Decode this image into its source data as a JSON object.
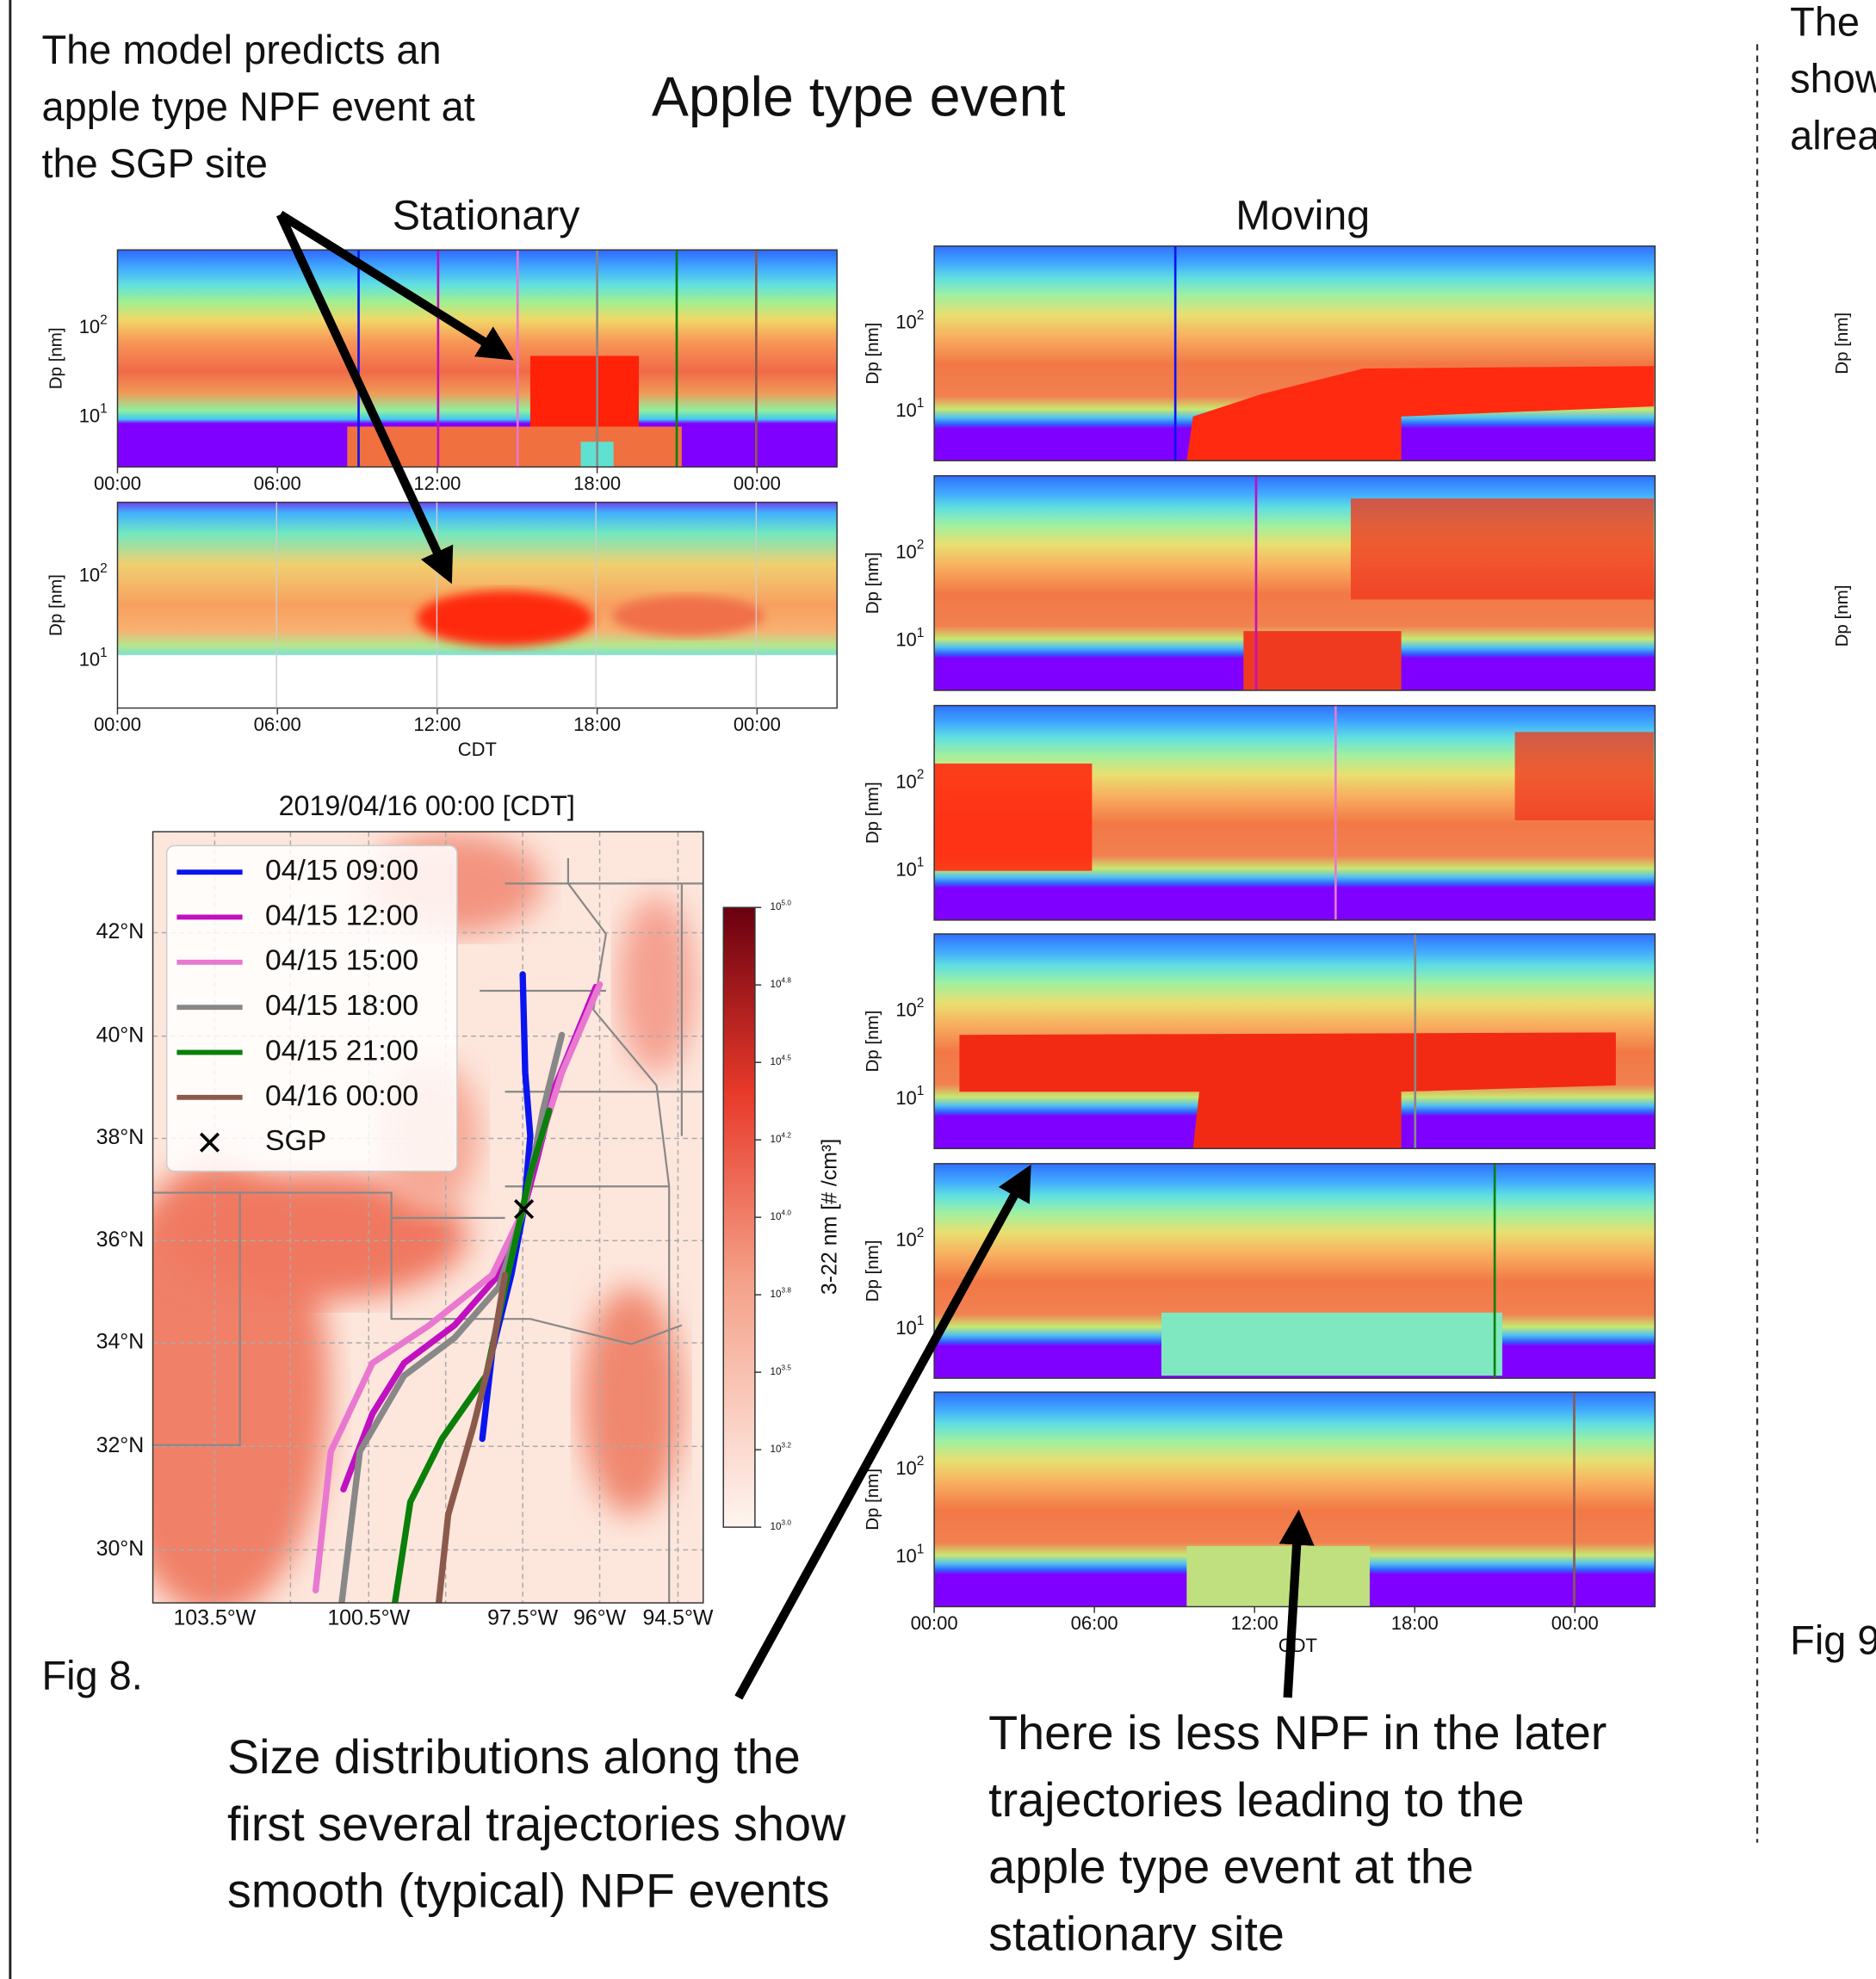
{
  "title": "Apple type event",
  "annotations": {
    "top_left": [
      "The model predicts an",
      "apple type NPF event at",
      "the SGP site"
    ],
    "bottom_left": [
      "Size distributions along the",
      "first several trajectories show",
      "smooth (typical) NPF events"
    ],
    "bottom_right": [
      "There is less NPF in the later",
      "trajectories leading to the",
      "apple type event at the",
      "stationary site"
    ]
  },
  "stationary": {
    "title": "Stationary",
    "ylabel": "Dp [nm]",
    "yticks": [
      {
        "base": "10",
        "exp": "2"
      },
      {
        "base": "10",
        "exp": "1"
      }
    ],
    "xticks": [
      "00:00",
      "06:00",
      "12:00",
      "18:00",
      "00:00"
    ],
    "xlabel": "CDT"
  },
  "moving": {
    "title": "Moving",
    "ylabel": "Dp [nm]",
    "yticks": [
      {
        "base": "10",
        "exp": "2"
      },
      {
        "base": "10",
        "exp": "1"
      }
    ],
    "xticks": [
      "00:00",
      "06:00",
      "12:00",
      "18:00",
      "00:00"
    ],
    "xlabel": "CDT"
  },
  "map": {
    "title": "2019/04/16  00:00 [CDT]",
    "legend": [
      {
        "label": "04/15 09:00",
        "color": "#0a14f0"
      },
      {
        "label": "04/15 12:00",
        "color": "#c010c0"
      },
      {
        "label": "04/15 15:00",
        "color": "#e878d0"
      },
      {
        "label": "04/15 18:00",
        "color": "#888888"
      },
      {
        "label": "04/15 21:00",
        "color": "#0a800a"
      },
      {
        "label": "04/16 00:00",
        "color": "#8c5a4c"
      },
      {
        "label": "SGP"
      }
    ],
    "lat_labels": [
      "42°N",
      "40°N",
      "38°N",
      "36°N",
      "34°N",
      "32°N",
      "30°N"
    ],
    "lon_labels": [
      "103.5°W",
      "100.5°W",
      "97.5°W",
      "96°W",
      "94.5°W"
    ],
    "colorbar": {
      "label": "3-22 nm [# /cm³]",
      "ticks": [
        {
          "base": "10",
          "exp": "5.0"
        },
        {
          "base": "10",
          "exp": "4.8"
        },
        {
          "base": "10",
          "exp": "4.5"
        },
        {
          "base": "10",
          "exp": "4.2"
        },
        {
          "base": "10",
          "exp": "4.0"
        },
        {
          "base": "10",
          "exp": "3.8"
        },
        {
          "base": "10",
          "exp": "3.5"
        },
        {
          "base": "10",
          "exp": "3.2"
        },
        {
          "base": "10",
          "exp": "3.0"
        }
      ]
    }
  },
  "figure_label": "Fig 8.",
  "right_panel": {
    "text": [
      "The",
      "show",
      "alrea"
    ],
    "ylabel": "Dp [nm]",
    "figure_label": "Fig 9"
  }
}
